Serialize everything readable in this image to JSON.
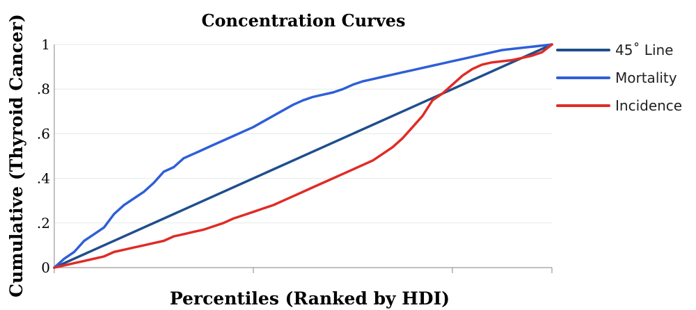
{
  "chart_data": {
    "type": "line",
    "title": "Concentration Curves",
    "xlabel": "Percentiles (Ranked by HDI)",
    "ylabel": "Cumulative (Thyroid Cancer)",
    "xlim": [
      0,
      1
    ],
    "ylim": [
      0,
      1
    ],
    "x_ticks": [
      0,
      0.4,
      0.8,
      1
    ],
    "y_ticks": [
      0,
      0.2,
      0.4,
      0.6,
      0.8,
      1
    ],
    "y_tick_labels": [
      "0",
      ".2",
      ".4",
      ".6",
      ".8",
      "1"
    ],
    "grid": true,
    "legend_position": "right",
    "series": [
      {
        "name": "45˚ Line",
        "color": "#1f4e8c",
        "x": [
          0,
          1
        ],
        "y": [
          0,
          1
        ]
      },
      {
        "name": "Mortality",
        "color": "#2e5fd8",
        "x": [
          0,
          0.02,
          0.04,
          0.06,
          0.08,
          0.1,
          0.12,
          0.14,
          0.16,
          0.18,
          0.2,
          0.22,
          0.24,
          0.26,
          0.28,
          0.29,
          0.3,
          0.32,
          0.34,
          0.36,
          0.38,
          0.4,
          0.42,
          0.44,
          0.46,
          0.48,
          0.5,
          0.52,
          0.54,
          0.56,
          0.58,
          0.6,
          0.62,
          0.64,
          0.66,
          0.68,
          0.7,
          0.72,
          0.74,
          0.76,
          0.78,
          0.8,
          0.82,
          0.84,
          0.86,
          0.88,
          0.9,
          0.92,
          0.94,
          0.96,
          0.98,
          1.0
        ],
        "y": [
          0,
          0.04,
          0.07,
          0.12,
          0.15,
          0.18,
          0.24,
          0.28,
          0.31,
          0.34,
          0.38,
          0.43,
          0.45,
          0.49,
          0.51,
          0.52,
          0.53,
          0.55,
          0.57,
          0.59,
          0.61,
          0.63,
          0.655,
          0.68,
          0.705,
          0.73,
          0.75,
          0.765,
          0.775,
          0.785,
          0.8,
          0.82,
          0.835,
          0.845,
          0.855,
          0.865,
          0.875,
          0.885,
          0.895,
          0.905,
          0.915,
          0.925,
          0.935,
          0.945,
          0.955,
          0.965,
          0.975,
          0.98,
          0.985,
          0.99,
          0.995,
          1.0
        ]
      },
      {
        "name": "Incidence",
        "color": "#e02b26",
        "x": [
          0,
          0.02,
          0.04,
          0.06,
          0.08,
          0.1,
          0.12,
          0.14,
          0.16,
          0.18,
          0.2,
          0.22,
          0.24,
          0.26,
          0.28,
          0.3,
          0.32,
          0.34,
          0.36,
          0.38,
          0.4,
          0.42,
          0.44,
          0.46,
          0.48,
          0.5,
          0.52,
          0.54,
          0.56,
          0.58,
          0.6,
          0.62,
          0.64,
          0.66,
          0.68,
          0.7,
          0.72,
          0.74,
          0.76,
          0.78,
          0.8,
          0.82,
          0.84,
          0.86,
          0.88,
          0.9,
          0.92,
          0.94,
          0.96,
          0.98,
          1.0
        ],
        "y": [
          0,
          0.01,
          0.02,
          0.03,
          0.04,
          0.05,
          0.07,
          0.08,
          0.09,
          0.1,
          0.11,
          0.12,
          0.14,
          0.15,
          0.16,
          0.17,
          0.185,
          0.2,
          0.22,
          0.235,
          0.25,
          0.265,
          0.28,
          0.3,
          0.32,
          0.34,
          0.36,
          0.38,
          0.4,
          0.42,
          0.44,
          0.46,
          0.48,
          0.51,
          0.54,
          0.58,
          0.63,
          0.68,
          0.75,
          0.78,
          0.82,
          0.86,
          0.89,
          0.91,
          0.92,
          0.925,
          0.93,
          0.94,
          0.95,
          0.965,
          1.0
        ]
      }
    ]
  }
}
